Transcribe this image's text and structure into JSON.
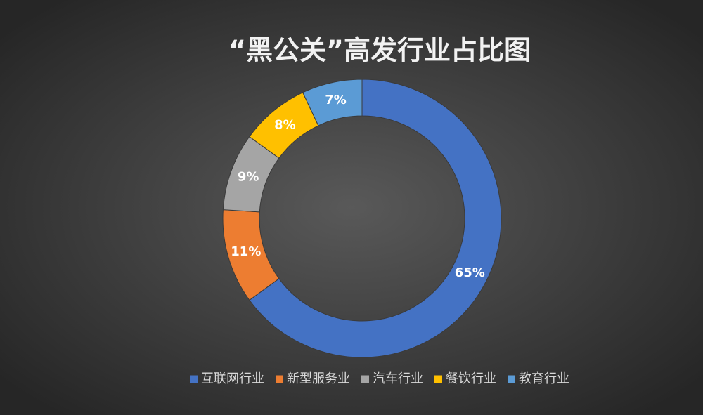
{
  "chart_data": {
    "type": "doughnut",
    "title": "“黑公关”高发行业占比图",
    "categories": [
      "互联网行业",
      "新型服务业",
      "汽车行业",
      "餐饮行业",
      "教育行业"
    ],
    "values": [
      65,
      11,
      9,
      8,
      7
    ],
    "value_labels": [
      "65%",
      "11%",
      "9%",
      "8%",
      "7%"
    ],
    "colors": [
      "#4472c4",
      "#ed7d31",
      "#a5a5a5",
      "#ffc000",
      "#5b9bd5"
    ],
    "legend": "bottom"
  }
}
